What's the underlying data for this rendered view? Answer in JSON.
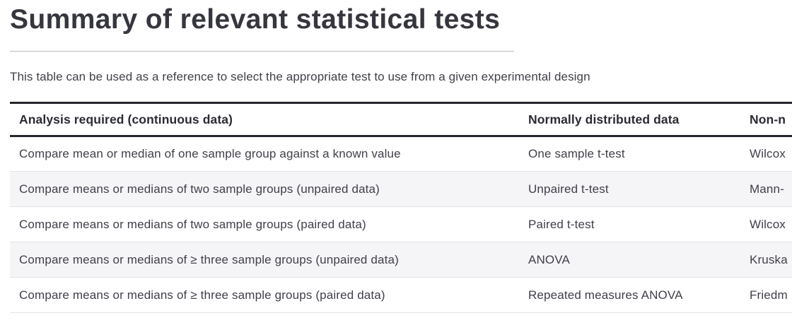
{
  "page": {
    "title": "Summary of relevant statistical tests",
    "subtitle": "This table can be used as a reference to select the appropriate test to use from a given experimental design"
  },
  "table": {
    "columns": [
      "Analysis required (continuous data)",
      "Normally distributed data",
      "Non-n"
    ],
    "rows": [
      [
        "Compare mean or median of one sample group against a known value",
        "One sample t-test",
        "Wilcox"
      ],
      [
        "Compare means or medians of two sample groups (unpaired data)",
        "Unpaired t-test",
        "Mann-"
      ],
      [
        "Compare means or medians of two sample groups (paired data)",
        "Paired t-test",
        "Wilcox"
      ],
      [
        "Compare means or medians of ≥ three sample groups (unpaired data)",
        "ANOVA",
        "Kruska"
      ],
      [
        "Compare means or medians of ≥ three sample groups (paired data)",
        "Repeated measures ANOVA",
        "Friedm"
      ]
    ]
  },
  "colors": {
    "title_text": "#36363e",
    "body_text": "#40404a",
    "header_rule": "#26262d",
    "row_divider": "#e4e4e6",
    "row_stripe": "#f5f5f7",
    "title_divider": "#b9b9b9",
    "background": "#ffffff"
  }
}
